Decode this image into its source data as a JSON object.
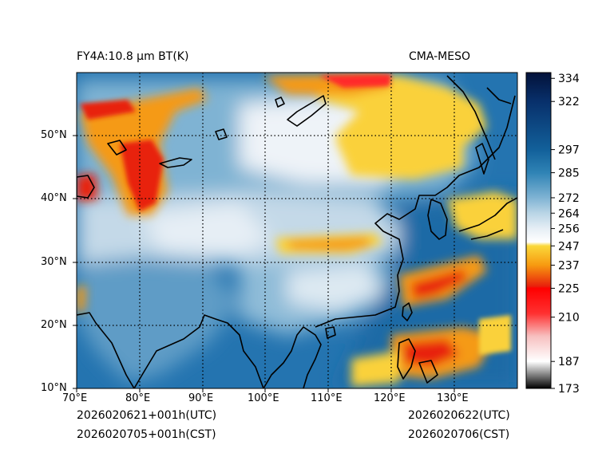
{
  "title_left": "FY4A:10.8 µm BT(K)",
  "title_right": "CMA-MESO",
  "footer": {
    "utc_left": "2026020621+001h(UTC)",
    "cst_left": "2026020705+001h(CST)",
    "utc_right": "2026020622(UTC)",
    "cst_right": "2026020706(CST)"
  },
  "map": {
    "lon_range": [
      70,
      140
    ],
    "lat_range": [
      10,
      60
    ],
    "lon_ticks": [
      70,
      80,
      90,
      100,
      110,
      120,
      130
    ],
    "lat_ticks": [
      10,
      20,
      30,
      40,
      50
    ],
    "lon_labels": [
      "70°E",
      "80°E",
      "90°E",
      "100°E",
      "110°E",
      "120°E",
      "130°E"
    ],
    "lat_labels": [
      "10°N",
      "20°N",
      "30°N",
      "40°N",
      "50°N"
    ]
  },
  "colorbar": {
    "min": 173,
    "max": 337,
    "ticks": [
      173,
      187,
      210,
      225,
      237,
      247,
      256,
      264,
      272,
      285,
      297,
      322,
      334
    ],
    "stops": [
      {
        "v": 173,
        "c": "#000000"
      },
      {
        "v": 187,
        "c": "#ffffff"
      },
      {
        "v": 200,
        "c": "#f7c0c0"
      },
      {
        "v": 212,
        "c": "#ff3030"
      },
      {
        "v": 225,
        "c": "#ff0000"
      },
      {
        "v": 226,
        "c": "#e8200c"
      },
      {
        "v": 237,
        "c": "#f79a10"
      },
      {
        "v": 247,
        "c": "#fad83a"
      },
      {
        "v": 249,
        "c": "#ffffff"
      },
      {
        "v": 256,
        "c": "#e6eef5"
      },
      {
        "v": 264,
        "c": "#b9d5e6"
      },
      {
        "v": 272,
        "c": "#7fb3d3"
      },
      {
        "v": 285,
        "c": "#2f83b5"
      },
      {
        "v": 297,
        "c": "#12609a"
      },
      {
        "v": 322,
        "c": "#08306b"
      },
      {
        "v": 337,
        "c": "#03123a"
      }
    ]
  },
  "palette": {
    "ocean": "#2474b0",
    "land_warm": "#6fa8cd",
    "land_cool": "#c4d9e8",
    "cloud_white": "#f2f6fa",
    "cloud_yellow": "#fad13a",
    "cloud_orange": "#f59a12",
    "cloud_red": "#e8220e",
    "coast": "#000000"
  }
}
